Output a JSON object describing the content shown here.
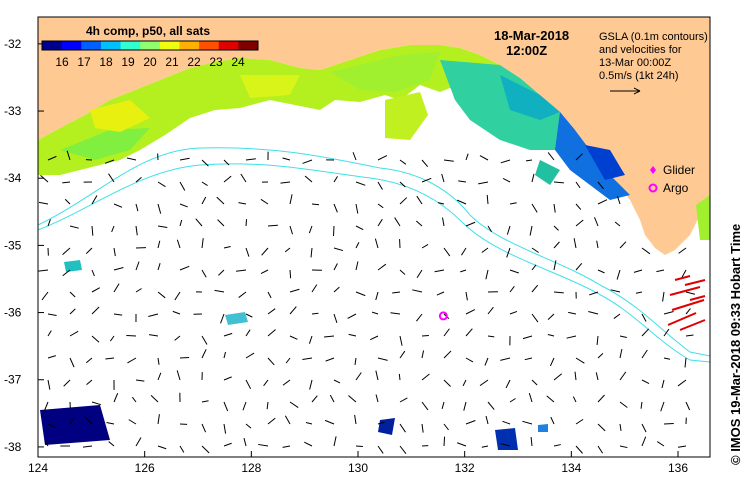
{
  "title": {
    "date": "18-Mar-2018",
    "time": "12:00Z"
  },
  "colorbar": {
    "title": "4h comp, p50, all sats",
    "ticks": [
      "16",
      "17",
      "18",
      "19",
      "20",
      "21",
      "22",
      "23",
      "24"
    ],
    "colors": [
      "#00008f",
      "#0000ff",
      "#0060ff",
      "#00c0ff",
      "#30ffcf",
      "#8fff70",
      "#efff10",
      "#ffb000",
      "#ff5000",
      "#df0000",
      "#800000"
    ]
  },
  "info": {
    "lines": [
      "GSLA (0.1m contours)",
      "and velocities for",
      "13-Mar 00:00Z",
      "0.5m/s (1kt 24h)"
    ]
  },
  "legend": {
    "glider": "Glider",
    "argo": "Argo",
    "marker_color": "#ff00ff"
  },
  "credit": "© IMOS 19-Mar-2018 09:33 Hobart Time",
  "axes": {
    "lon_ticks": [
      "124",
      "126",
      "128",
      "130",
      "132",
      "134",
      "136"
    ],
    "lat_ticks": [
      "-32",
      "-33",
      "-34",
      "-35",
      "-36",
      "-37",
      "-38"
    ],
    "lon_range": [
      124,
      136.6
    ],
    "lat_range": [
      -31.6,
      -38.15
    ]
  },
  "colors": {
    "land": "#ffc994",
    "contour": "#40e0e8",
    "arrow_high": "#e00000"
  },
  "argo_position": {
    "lon": 131.6,
    "lat": -36.05
  }
}
